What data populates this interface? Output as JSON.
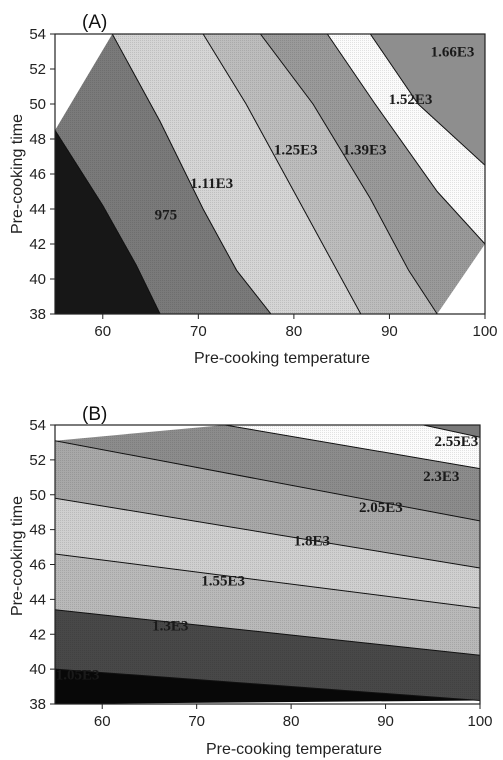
{
  "chart_data": [
    {
      "type": "contour",
      "panel": "(A)",
      "xlabel": "Pre-cooking temperature",
      "ylabel": "Pre-cooking time",
      "xlim": [
        55,
        100
      ],
      "ylim": [
        38,
        54
      ],
      "xticks": [
        "60",
        "70",
        "80",
        "90",
        "100"
      ],
      "yticks": [
        "38",
        "40",
        "42",
        "44",
        "46",
        "48",
        "50",
        "52",
        "54"
      ],
      "levels": [
        "975",
        "1.11E3",
        "1.25E3",
        "1.39E3",
        "1.52E3",
        "1.66E3"
      ],
      "level_label_positions": [
        {
          "text": "975",
          "x": 66.6,
          "y": 43.6
        },
        {
          "text": "1.11E3",
          "x": 71.4,
          "y": 45.4
        },
        {
          "text": "1.25E3",
          "x": 80.2,
          "y": 47.3
        },
        {
          "text": "1.39E3",
          "x": 87.4,
          "y": 47.3
        },
        {
          "text": "1.52E3",
          "x": 92.2,
          "y": 50.2
        },
        {
          "text": "1.66E3",
          "x": 96.6,
          "y": 52.9
        }
      ],
      "boundaries": [
        {
          "level": "975",
          "points": [
            [
              55,
              48.5
            ],
            [
              60,
              44.2
            ],
            [
              63.5,
              40.8
            ],
            [
              66,
              38
            ]
          ]
        },
        {
          "level": "1.11E3",
          "points": [
            [
              61,
              54
            ],
            [
              66,
              49
            ],
            [
              70.5,
              44
            ],
            [
              74,
              40.5
            ],
            [
              77.6,
              38
            ]
          ]
        },
        {
          "level": "1.25E3",
          "points": [
            [
              70.5,
              54
            ],
            [
              75,
              50
            ],
            [
              80.5,
              44.5
            ],
            [
              87,
              38
            ]
          ]
        },
        {
          "level": "1.39E3",
          "points": [
            [
              76.5,
              54
            ],
            [
              82,
              50
            ],
            [
              88,
              44.6
            ],
            [
              92,
              40.5
            ],
            [
              95,
              38
            ]
          ]
        },
        {
          "level": "1.52E3",
          "points": [
            [
              83.5,
              54
            ],
            [
              88.5,
              50
            ],
            [
              95,
              45
            ],
            [
              100,
              42
            ]
          ]
        },
        {
          "level": "1.66E3",
          "points": [
            [
              88,
              54
            ],
            [
              93,
              50
            ],
            [
              100,
              46.5
            ]
          ]
        }
      ]
    },
    {
      "type": "contour",
      "panel": "(B)",
      "xlabel": "Pre-cooking temperature",
      "ylabel": "Pre-cooking time",
      "xlim": [
        55,
        100
      ],
      "ylim": [
        38,
        54
      ],
      "xticks": [
        "60",
        "70",
        "80",
        "90",
        "100"
      ],
      "yticks": [
        "38",
        "40",
        "42",
        "44",
        "46",
        "48",
        "50",
        "52",
        "54"
      ],
      "levels": [
        "1.05E3",
        "1.3E3",
        "1.55E3",
        "1.8E3",
        "2.05E3",
        "2.3E3",
        "2.55E3"
      ],
      "level_label_positions": [
        {
          "text": "1.05E3",
          "x": 57.4,
          "y": 39.6
        },
        {
          "text": "1.3E3",
          "x": 67.2,
          "y": 42.4
        },
        {
          "text": "1.55E3",
          "x": 72.8,
          "y": 45.0
        },
        {
          "text": "1.8E3",
          "x": 82.2,
          "y": 47.3
        },
        {
          "text": "2.05E3",
          "x": 89.5,
          "y": 49.2
        },
        {
          "text": "2.3E3",
          "x": 95.9,
          "y": 51.0
        },
        {
          "text": "2.55E3",
          "x": 97.5,
          "y": 53.0
        }
      ],
      "boundaries": [
        {
          "level": "1.05E3",
          "points": [
            [
              55,
              40
            ],
            [
              100,
              38.2
            ]
          ]
        },
        {
          "level": "1.3E3",
          "points": [
            [
              55,
              43.4
            ],
            [
              100,
              40.8
            ]
          ]
        },
        {
          "level": "1.55E3",
          "points": [
            [
              55,
              46.6
            ],
            [
              100,
              43.5
            ]
          ]
        },
        {
          "level": "1.8E3",
          "points": [
            [
              55,
              49.8
            ],
            [
              100,
              45.8
            ]
          ]
        },
        {
          "level": "2.05E3",
          "points": [
            [
              55,
              53.1
            ],
            [
              100,
              48.5
            ]
          ]
        },
        {
          "level": "2.3E3",
          "points": [
            [
              73,
              54
            ],
            [
              100,
              51.5
            ]
          ]
        },
        {
          "level": "2.55E3",
          "points": [
            [
              94,
              54
            ],
            [
              100,
              53.3
            ]
          ]
        }
      ]
    }
  ]
}
